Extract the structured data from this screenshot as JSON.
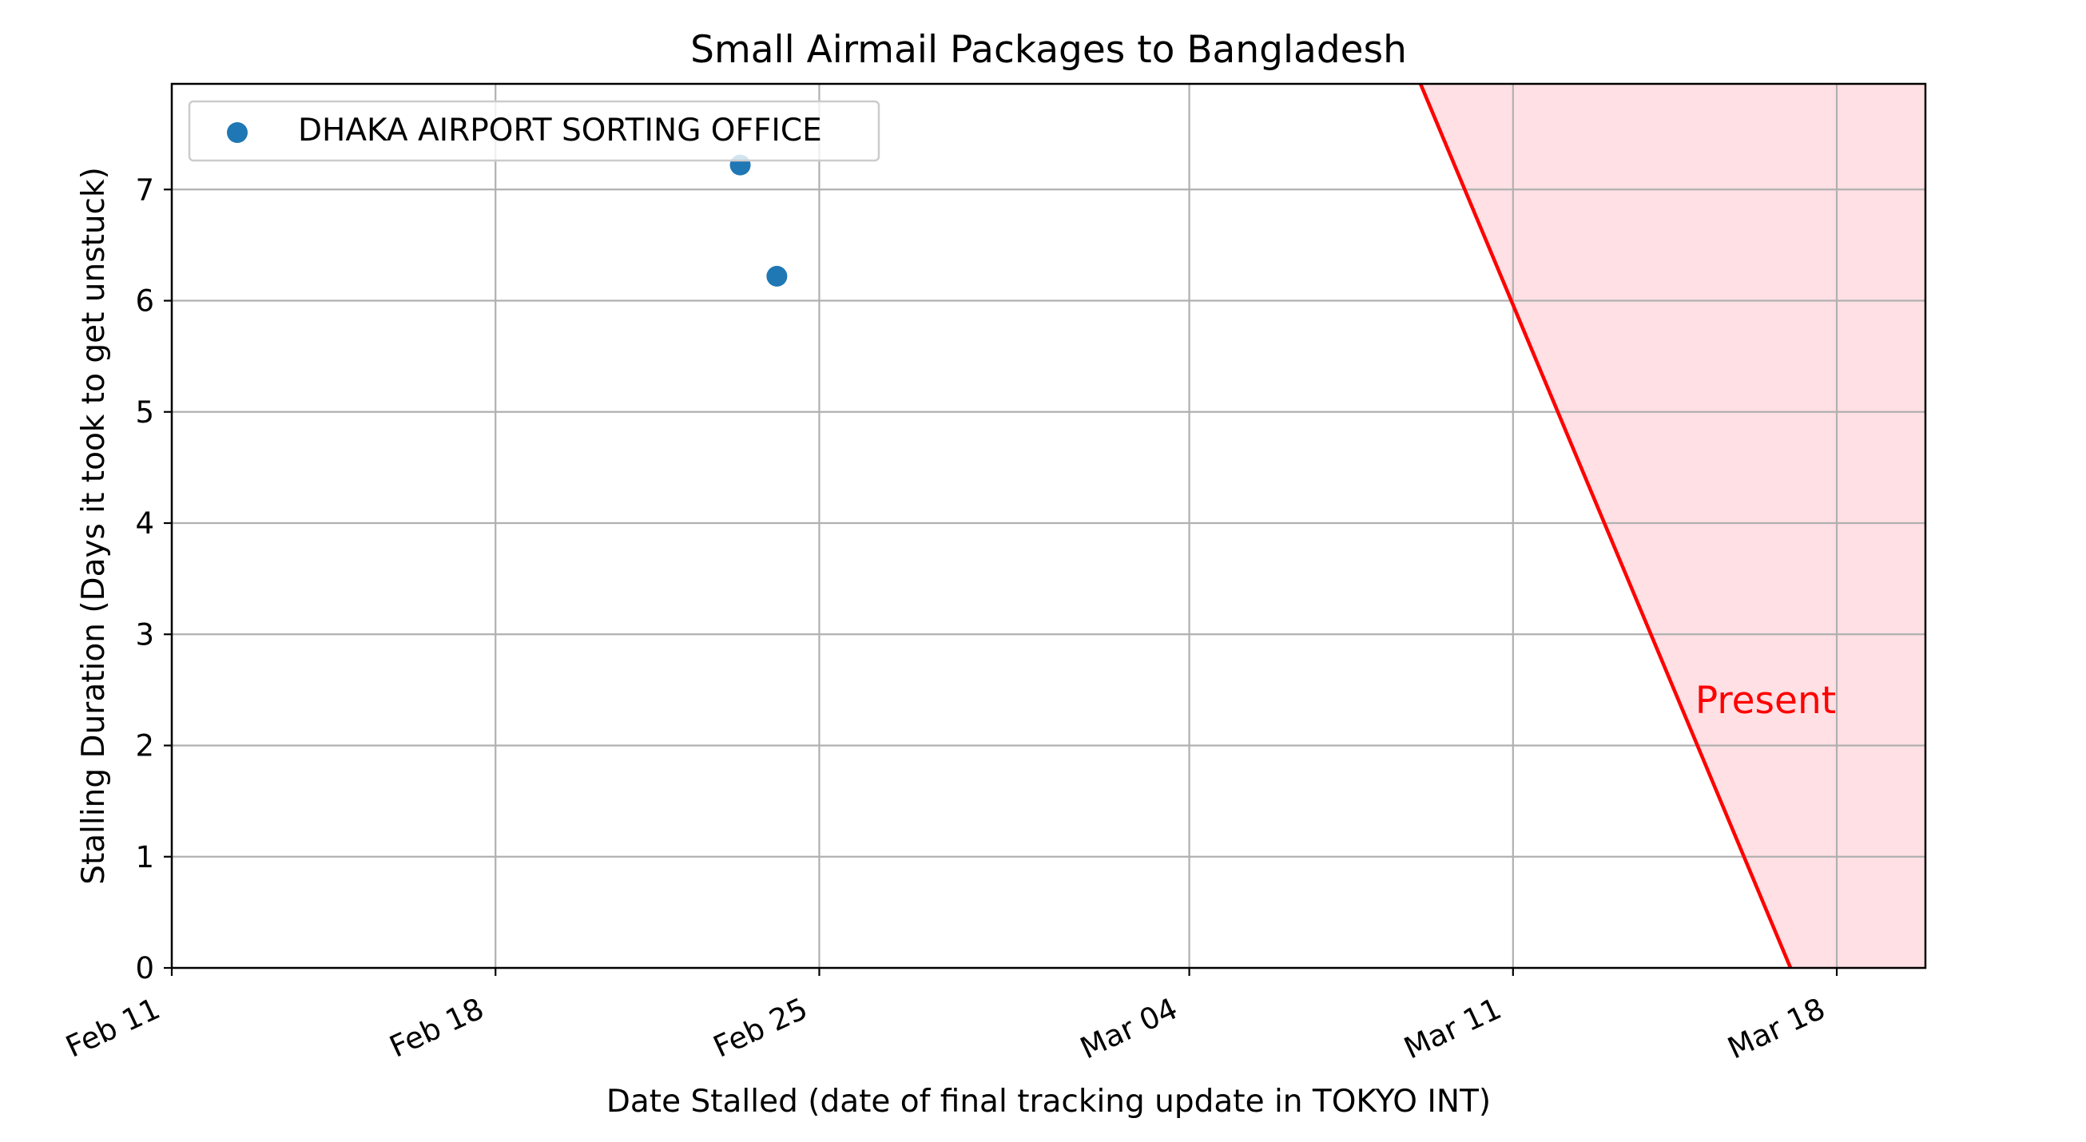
{
  "chart_data": {
    "type": "scatter",
    "title": "Small Airmail Packages to Bangladesh",
    "xlabel": "Date Stalled (date of final tracking update in TOKYO INT)",
    "ylabel": "Stalling Duration (Days it took to get unstuck)",
    "x_axis_type": "date",
    "xlim": [
      "2024-02-11",
      "2024-03-19T22:00"
    ],
    "ylim": [
      0,
      7.95
    ],
    "x_ticks": [
      {
        "date": "2024-02-11",
        "label": "Feb 11"
      },
      {
        "date": "2024-02-18",
        "label": "Feb 18"
      },
      {
        "date": "2024-02-25",
        "label": "Feb 25"
      },
      {
        "date": "2024-03-04",
        "label": "Mar 04"
      },
      {
        "date": "2024-03-11",
        "label": "Mar 11"
      },
      {
        "date": "2024-03-18",
        "label": "Mar 18"
      }
    ],
    "y_ticks": [
      0,
      1,
      2,
      3,
      4,
      5,
      6,
      7
    ],
    "grid": true,
    "legend_position": "top-left",
    "series": [
      {
        "name": "DHAKA AIRPORT SORTING OFFICE",
        "color": "#1f77b4",
        "points": [
          {
            "x": "2024-02-23T07:00",
            "y": 7.22
          },
          {
            "x": "2024-02-24T02:00",
            "y": 6.22
          }
        ]
      }
    ],
    "present_region": {
      "label": "Present",
      "line_color": "#ff0000",
      "fill_color": "#ffe0e4",
      "line": [
        {
          "x": "2024-03-09",
          "y": 7.95
        },
        {
          "x": "2024-03-17T00:00",
          "y": 0
        }
      ]
    }
  }
}
